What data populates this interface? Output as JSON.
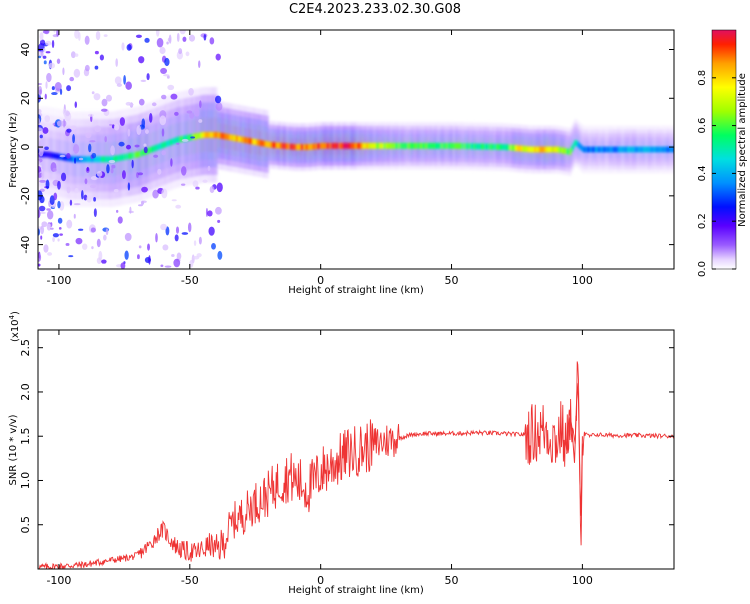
{
  "figure": {
    "title": "C2E4.2023.233.02.30.G08"
  },
  "chart_data": [
    {
      "type": "heatmap",
      "xlabel": "Height of straight line (km)",
      "ylabel": "Frequency (Hz)",
      "xlim": [
        -108,
        135
      ],
      "ylim": [
        -50,
        48
      ],
      "xticks": [
        -100,
        -50,
        0,
        50,
        100
      ],
      "xtick_labels": [
        "-100",
        "-50",
        "0",
        "50",
        "100"
      ],
      "yticks": [
        -40,
        -20,
        0,
        20,
        40
      ],
      "ytick_labels": [
        "-40",
        "-20",
        "0",
        "20",
        "40"
      ],
      "colorbar": {
        "label": "Normalized spectral amplitude",
        "range": [
          0,
          1
        ],
        "ticks": [
          0.0,
          0.2,
          0.4,
          0.6,
          0.8
        ],
        "tick_labels": [
          "0.0",
          "0.2",
          "0.4",
          "0.6",
          "0.8"
        ],
        "colormap": [
          "#ffffff",
          "#e6d3ff",
          "#9a5cff",
          "#5a00ff",
          "#0010ff",
          "#0090ff",
          "#00e0e0",
          "#00ff60",
          "#a0ff00",
          "#ffff00",
          "#ffa000",
          "#ff2000",
          "#e01060"
        ]
      },
      "ridge": {
        "x": [
          -105,
          -100,
          -95,
          -90,
          -85,
          -80,
          -75,
          -70,
          -65,
          -60,
          -55,
          -50,
          -45,
          -40,
          -35,
          -30,
          -25,
          -20,
          -15,
          -10,
          -5,
          0,
          10,
          20,
          30,
          50,
          70,
          75,
          80,
          85,
          90,
          95,
          97,
          100,
          110,
          120,
          135
        ],
        "y": [
          -3,
          -4,
          -5,
          -5,
          -5,
          -5,
          -4,
          -3,
          -1,
          1,
          3,
          4,
          5,
          5,
          4,
          3,
          2,
          1,
          0.5,
          0,
          0,
          0.5,
          0.5,
          0.5,
          0.5,
          0.5,
          0,
          -0.5,
          -1,
          -1,
          -1,
          -2,
          2,
          -1,
          -1,
          -1,
          -1
        ],
        "amplitude": [
          0.3,
          0.35,
          0.4,
          0.45,
          0.5,
          0.55,
          0.55,
          0.6,
          0.55,
          0.55,
          0.55,
          0.6,
          0.75,
          0.85,
          0.8,
          0.8,
          0.85,
          0.85,
          0.9,
          0.9,
          0.85,
          0.9,
          0.95,
          0.7,
          0.6,
          0.6,
          0.55,
          0.75,
          0.7,
          0.8,
          0.7,
          0.6,
          0.5,
          0.4,
          0.4,
          0.45,
          0.4
        ]
      }
    },
    {
      "type": "line",
      "xlabel": "Height of straight line (km)",
      "ylabel": "SNR (10 * v/v)",
      "y_multiplier_label": "(x10",
      "y_multiplier_exponent": "4",
      "y_multiplier_suffix": ")",
      "xlim": [
        -108,
        135
      ],
      "ylim": [
        0,
        2.7
      ],
      "xticks": [
        -100,
        -50,
        0,
        50,
        100
      ],
      "xtick_labels": [
        "-100",
        "-50",
        "0",
        "50",
        "100"
      ],
      "yticks": [
        0.5,
        1.0,
        1.5,
        2.0,
        2.5
      ],
      "ytick_labels": [
        "0.5",
        "1.0",
        "1.5",
        "2.0",
        "2.5"
      ],
      "series": [
        {
          "color": "#ee3333",
          "x": [
            -108,
            -100,
            -90,
            -80,
            -75,
            -70,
            -65,
            -62,
            -60,
            -58,
            -55,
            -52,
            -50,
            -48,
            -45,
            -42,
            -40,
            -37,
            -35,
            -33,
            -30,
            -27,
            -25,
            -22,
            -20,
            -17,
            -15,
            -12,
            -10,
            -7,
            -5,
            -2,
            0,
            3,
            5,
            8,
            10,
            15,
            20,
            25,
            30,
            35,
            40,
            50,
            60,
            70,
            75,
            80,
            83,
            86,
            88,
            90,
            92,
            94,
            95,
            96,
            97,
            98,
            98.5,
            99,
            99.5,
            100,
            101,
            103,
            105,
            110,
            120,
            135
          ],
          "y": [
            0.02,
            0.03,
            0.05,
            0.1,
            0.12,
            0.15,
            0.28,
            0.4,
            0.45,
            0.35,
            0.25,
            0.2,
            0.2,
            0.18,
            0.22,
            0.28,
            0.2,
            0.3,
            0.45,
            0.55,
            0.6,
            0.7,
            0.75,
            0.8,
            0.85,
            0.95,
            1.0,
            1.05,
            1.0,
            0.95,
            0.9,
            1.0,
            1.1,
            1.15,
            1.2,
            1.25,
            1.3,
            1.35,
            1.4,
            1.45,
            1.48,
            1.52,
            1.53,
            1.53,
            1.54,
            1.53,
            1.52,
            1.52,
            1.55,
            1.58,
            1.5,
            1.45,
            1.6,
            1.3,
            1.8,
            1.6,
            1.2,
            2.1,
            1.9,
            1.0,
            0.6,
            1.5,
            1.52,
            1.5,
            1.52,
            1.51,
            1.51,
            1.5
          ]
        }
      ]
    }
  ]
}
